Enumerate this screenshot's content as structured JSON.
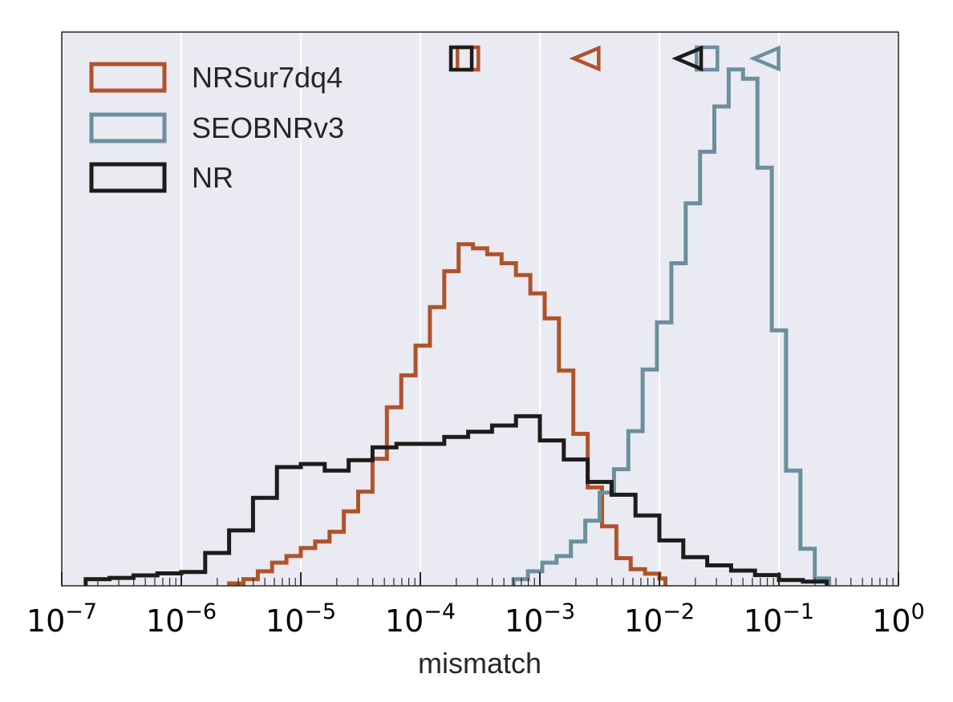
{
  "chart_data": {
    "type": "histogram",
    "xscale": "log",
    "xlim": [
      1e-07,
      1
    ],
    "xlabel": "mismatch",
    "ylabel": "",
    "grid": "vertical",
    "background": "#eaeaf2",
    "legend_position": "upper-left",
    "xticks": [
      {
        "base": "10",
        "exp": "−7"
      },
      {
        "base": "10",
        "exp": "−6"
      },
      {
        "base": "10",
        "exp": "−5"
      },
      {
        "base": "10",
        "exp": "−4"
      },
      {
        "base": "10",
        "exp": "−3"
      },
      {
        "base": "10",
        "exp": "−2"
      },
      {
        "base": "10",
        "exp": "−1"
      },
      {
        "base": "10",
        "exp": "0"
      }
    ],
    "series": [
      {
        "name": "NRSur7dq4",
        "color": "#b0532a",
        "marker_square": 0.00025,
        "marker_triangle": 0.0025,
        "log10_edges": [
          -5.6,
          -5.48,
          -5.36,
          -5.24,
          -5.12,
          -5.0,
          -4.88,
          -4.76,
          -4.64,
          -4.52,
          -4.4,
          -4.28,
          -4.16,
          -4.04,
          -3.92,
          -3.8,
          -3.68,
          -3.56,
          -3.44,
          -3.32,
          -3.2,
          -3.08,
          -2.96,
          -2.84,
          -2.72,
          -2.6,
          -2.48,
          -2.36,
          -2.24,
          -2.12,
          -2.0,
          -1.95
        ],
        "heights": [
          0.07,
          0.19,
          0.42,
          0.67,
          0.86,
          1.09,
          1.28,
          1.56,
          2.15,
          2.72,
          3.67,
          5.16,
          6.08,
          6.94,
          8.05,
          9.09,
          9.87,
          9.75,
          9.58,
          9.32,
          8.98,
          8.45,
          7.73,
          6.22,
          4.39,
          2.84,
          1.72,
          0.8,
          0.48,
          0.35,
          0.21
        ]
      },
      {
        "name": "SEOBNRv3",
        "color": "#6c8f9e",
        "marker_square": 0.025,
        "marker_triangle": 0.08,
        "log10_edges": [
          -3.22,
          -3.1,
          -2.98,
          -2.86,
          -2.74,
          -2.62,
          -2.5,
          -2.38,
          -2.26,
          -2.14,
          -2.02,
          -1.9,
          -1.78,
          -1.66,
          -1.54,
          -1.42,
          -1.3,
          -1.18,
          -1.06,
          -0.94,
          -0.82,
          -0.7,
          -0.58
        ],
        "heights": [
          0.19,
          0.42,
          0.67,
          0.86,
          1.28,
          1.88,
          2.69,
          3.37,
          4.47,
          6.25,
          7.61,
          9.32,
          11.05,
          12.54,
          13.85,
          14.92,
          14.65,
          12.08,
          7.38,
          3.33,
          1.07,
          0.21
        ]
      },
      {
        "name": "NR",
        "color": "#1f1b1a",
        "marker_square": 0.00022,
        "marker_triangle": 0.018,
        "log10_edges": [
          -6.8,
          -6.6,
          -6.4,
          -6.2,
          -6.0,
          -5.8,
          -5.6,
          -5.4,
          -5.2,
          -5.0,
          -4.8,
          -4.6,
          -4.4,
          -4.2,
          -4.0,
          -3.8,
          -3.6,
          -3.4,
          -3.2,
          -3.0,
          -2.8,
          -2.6,
          -2.4,
          -2.2,
          -2.0,
          -1.8,
          -1.6,
          -1.4,
          -1.2,
          -1.0,
          -0.8,
          -0.6
        ],
        "heights": [
          0.19,
          0.23,
          0.3,
          0.36,
          0.4,
          0.95,
          1.6,
          2.54,
          3.43,
          3.52,
          3.33,
          3.63,
          4.0,
          4.1,
          4.1,
          4.3,
          4.45,
          4.63,
          4.9,
          4.2,
          3.65,
          3.0,
          2.63,
          2.03,
          1.31,
          0.83,
          0.59,
          0.44,
          0.31,
          0.17,
          0.12
        ]
      }
    ]
  }
}
